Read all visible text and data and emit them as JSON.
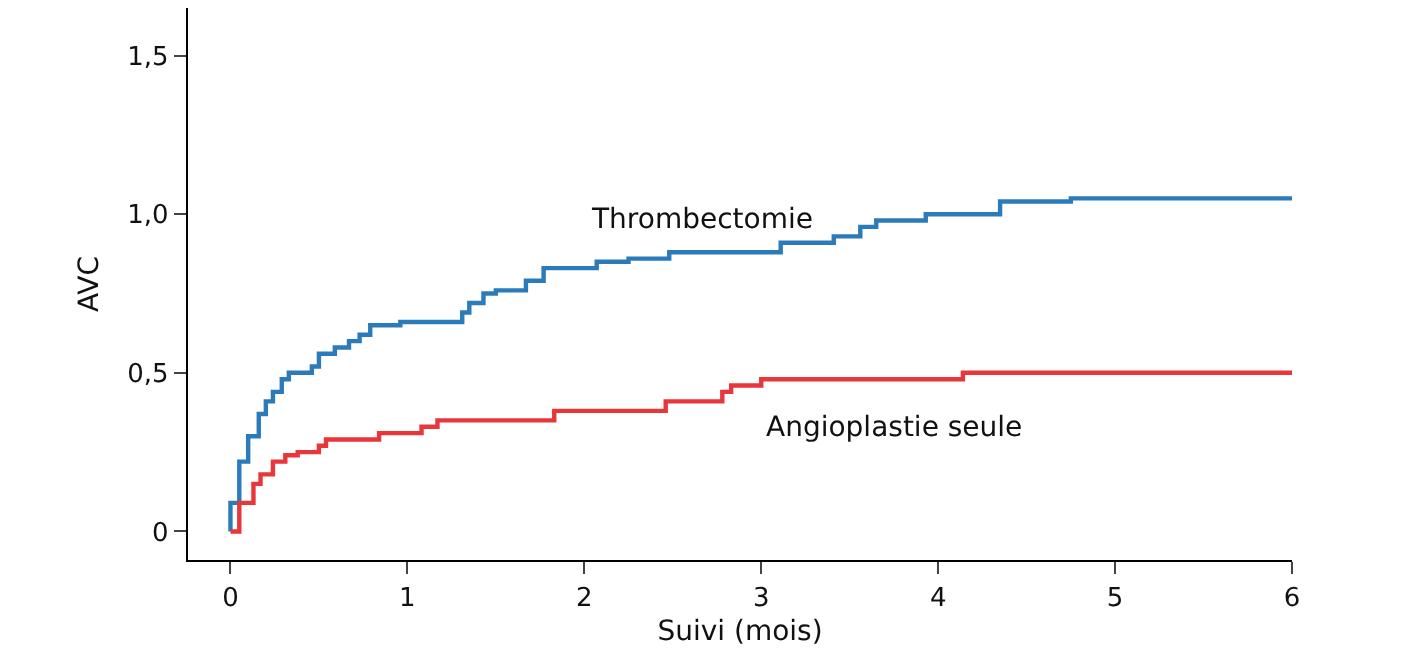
{
  "chart_data": {
    "type": "step",
    "xlabel": "Suivi (mois)",
    "ylabel": "AVC",
    "xlim": [
      -0.24,
      6
    ],
    "xticks": [
      0,
      1,
      2,
      3,
      4,
      5,
      6
    ],
    "ylim": [
      -0.09,
      1.65
    ],
    "yticks": [
      0,
      {
        "value": 0.5,
        "label": "0,5"
      },
      {
        "value": 1,
        "label": "1,0"
      },
      {
        "value": 1.5,
        "label": "1,5"
      }
    ],
    "legend": false,
    "marker": "none",
    "line_style": "solid",
    "series": [
      {
        "name": "Thrombectomie",
        "color": "#2b7bba",
        "x": [
          0,
          0,
          0.05,
          0.1,
          0.16,
          0.2,
          0.24,
          0.29,
          0.33,
          0.46,
          0.5,
          0.59,
          0.67,
          0.73,
          0.79,
          0.96,
          1.31,
          1.35,
          1.43,
          1.5,
          1.67,
          1.77,
          2.07,
          2.25,
          2.48,
          3.11,
          3.41,
          3.56,
          3.65,
          3.93,
          4.35,
          4.75,
          6
        ],
        "values": [
          0,
          0.09,
          0.22,
          0.3,
          0.37,
          0.41,
          0.44,
          0.48,
          0.5,
          0.52,
          0.56,
          0.58,
          0.6,
          0.62,
          0.65,
          0.66,
          0.69,
          0.72,
          0.75,
          0.76,
          0.79,
          0.83,
          0.85,
          0.86,
          0.88,
          0.91,
          0.93,
          0.96,
          0.98,
          1.0,
          1.04,
          1.05,
          1.05
        ]
      },
      {
        "name": "Angioplastie seule",
        "color": "#e8363a",
        "x": [
          0,
          0.05,
          0.13,
          0.17,
          0.24,
          0.31,
          0.38,
          0.5,
          0.54,
          0.84,
          1.08,
          1.17,
          1.83,
          2.46,
          2.78,
          2.83,
          3.0,
          4.14,
          6
        ],
        "values": [
          0,
          0.09,
          0.15,
          0.18,
          0.22,
          0.24,
          0.25,
          0.27,
          0.29,
          0.31,
          0.33,
          0.35,
          0.38,
          0.41,
          0.44,
          0.46,
          0.48,
          0.5,
          0.5
        ]
      }
    ]
  }
}
